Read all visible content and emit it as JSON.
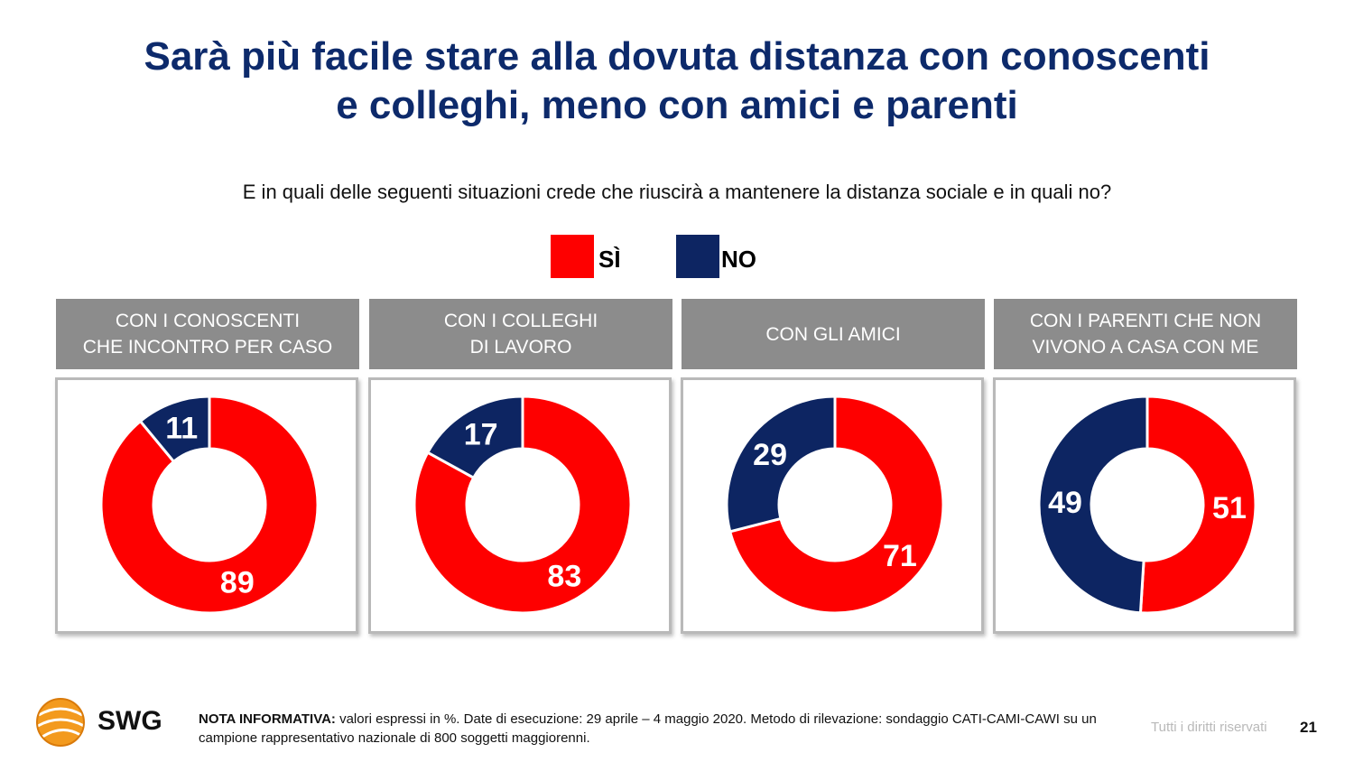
{
  "title": {
    "line1": "Sarà più facile stare alla dovuta distanza con conoscenti",
    "line2": "e colleghi, meno con amici e parenti"
  },
  "question": "E in quali delle seguenti situazioni crede che riuscirà a mantenere la distanza sociale e in quali no?",
  "legend": [
    {
      "label": "SÌ",
      "color": "#fe0000"
    },
    {
      "label": "NO",
      "color": "#0d2562"
    }
  ],
  "chart_data": [
    {
      "type": "pie",
      "title": "CON I CONOSCENTI\nCHE INCONTRO PER CASO",
      "categories": [
        "SÌ",
        "NO"
      ],
      "values": [
        89,
        11
      ]
    },
    {
      "type": "pie",
      "title": "CON I COLLEGHI\nDI LAVORO",
      "categories": [
        "SÌ",
        "NO"
      ],
      "values": [
        83,
        17
      ]
    },
    {
      "type": "pie",
      "title": "CON GLI AMICI",
      "categories": [
        "SÌ",
        "NO"
      ],
      "values": [
        71,
        29
      ]
    },
    {
      "type": "pie",
      "title": "CON I PARENTI CHE NON\nVIVONO A CASA CON ME",
      "categories": [
        "SÌ",
        "NO"
      ],
      "values": [
        51,
        49
      ]
    }
  ],
  "footer": {
    "logo": "SWG",
    "note_label": "NOTA INFORMATIVA:",
    "note_text": " valori espressi in %. Date di esecuzione: 29 aprile – 4 maggio 2020. Metodo di rilevazione: sondaggio CATI-CAMI-CAWI su un campione rappresentativo nazionale di 800 soggetti maggiorenni.",
    "rights": "Tutti i diritti riservati",
    "page": "21"
  }
}
